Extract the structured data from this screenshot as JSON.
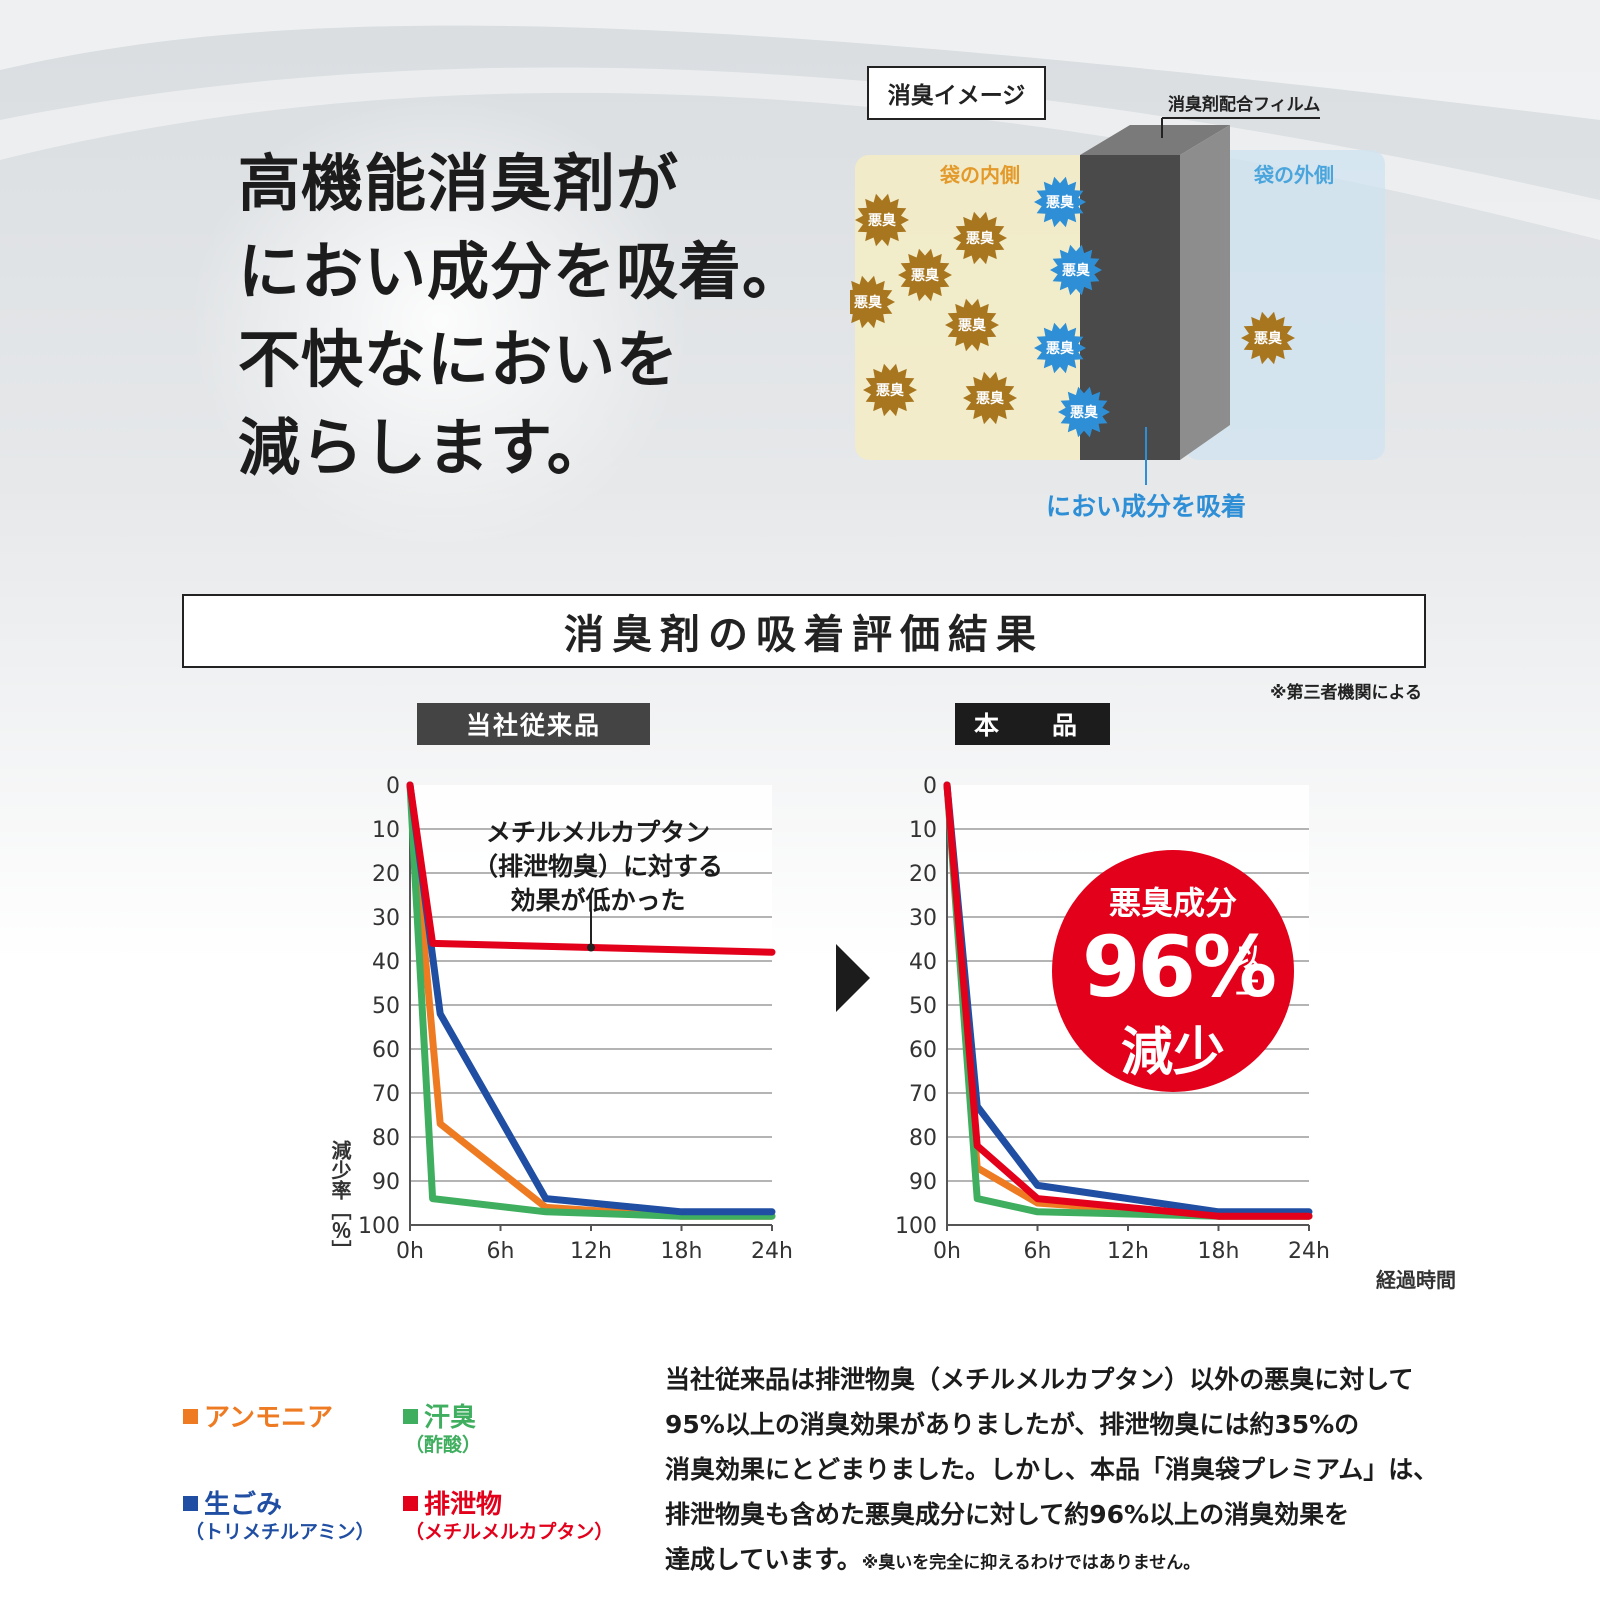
{
  "headline": {
    "lines": [
      "高機能消臭剤が",
      "におい成分を吸着。",
      "不快なにおいを",
      "減らします。"
    ]
  },
  "diagram": {
    "title": "消臭イメージ",
    "film_label": "消臭剤配合フィルム",
    "inside_label": "袋の内側",
    "outside_label": "袋の外側",
    "odor_label": "悪臭",
    "absorb_label": "におい成分を吸着",
    "colors": {
      "inside": "#f3ecc6",
      "outside": "#cfe3f0",
      "film": "#4a4a4a",
      "odor": "#a8761e",
      "absorbed": "#2f8fd6"
    }
  },
  "section_title": "消臭剤の吸着評価結果",
  "source_note": "※第三者機関による",
  "panels": {
    "old_label": "当社従来品",
    "new_label": "本　品"
  },
  "axis": {
    "y_label": "減少率［％］",
    "x_label": "経過時間",
    "y_ticks": [
      "0",
      "10",
      "20",
      "30",
      "40",
      "50",
      "60",
      "70",
      "80",
      "90",
      "100"
    ],
    "x_ticks": [
      "0h",
      "6h",
      "12h",
      "18h",
      "24h"
    ]
  },
  "annotation": {
    "lines": [
      "メチルメルカプタン",
      "（排泄物臭）に対する",
      "効果が低かった"
    ]
  },
  "badge": {
    "line1": "悪臭成分",
    "value": "96%",
    "suffix": "以上",
    "line3": "減少"
  },
  "legend": [
    {
      "name": "アンモニア",
      "sub": "",
      "color": "#ee7a22"
    },
    {
      "name": "汗臭",
      "sub": "（酢酸）",
      "color": "#3fae5f"
    },
    {
      "name": "生ごみ",
      "sub": "（トリメチルアミン）",
      "color": "#1f4ea3"
    },
    {
      "name": "排泄物",
      "sub": "（メチルメルカプタン）",
      "color": "#e3001b"
    }
  ],
  "description": {
    "lines": [
      "当社従来品は排泄物臭（メチルメルカプタン）以外の悪臭に対して",
      "95%以上の消臭効果がありましたが、排泄物臭には約35%の",
      "消臭効果にとどまりました。しかし、本品「消臭袋プレミアム」は、",
      "排泄物臭も含めた悪臭成分に対して約96%以上の消臭効果を",
      "達成しています。"
    ],
    "footnote": "※臭いを完全に抑えるわけではありません。"
  },
  "chart_data": [
    {
      "type": "line",
      "title": "当社従来品",
      "xlabel": "経過時間",
      "ylabel": "減少率［％］",
      "xlim": [
        0,
        24
      ],
      "ylim": [
        0,
        100
      ],
      "y_inverted": true,
      "grid": true,
      "series": [
        {
          "name": "アンモニア",
          "color": "#ee7a22",
          "x": [
            0,
            2,
            9,
            18,
            24
          ],
          "y": [
            0,
            77,
            96,
            98,
            98
          ]
        },
        {
          "name": "汗臭",
          "color": "#3fae5f",
          "x": [
            0,
            1.5,
            9,
            18,
            24
          ],
          "y": [
            0,
            94,
            97,
            98,
            98
          ]
        },
        {
          "name": "生ごみ",
          "color": "#1f4ea3",
          "x": [
            0,
            2,
            9,
            18,
            24
          ],
          "y": [
            0,
            52,
            94,
            97,
            97
          ]
        },
        {
          "name": "排泄物",
          "color": "#e3001b",
          "x": [
            0,
            1.5,
            24
          ],
          "y": [
            0,
            36,
            38
          ]
        }
      ]
    },
    {
      "type": "line",
      "title": "本　品",
      "xlabel": "経過時間",
      "ylabel": "減少率［％］",
      "xlim": [
        0,
        24
      ],
      "ylim": [
        0,
        100
      ],
      "y_inverted": true,
      "grid": true,
      "series": [
        {
          "name": "アンモニア",
          "color": "#ee7a22",
          "x": [
            0,
            2,
            6,
            18,
            24
          ],
          "y": [
            0,
            87,
            95,
            98,
            98
          ]
        },
        {
          "name": "汗臭",
          "color": "#3fae5f",
          "x": [
            0,
            2,
            6,
            18,
            24
          ],
          "y": [
            0,
            94,
            97,
            98,
            98
          ]
        },
        {
          "name": "生ごみ",
          "color": "#1f4ea3",
          "x": [
            0,
            2,
            6,
            18,
            24
          ],
          "y": [
            0,
            73,
            91,
            97,
            97
          ]
        },
        {
          "name": "排泄物",
          "color": "#e3001b",
          "x": [
            0,
            2,
            6,
            18,
            24
          ],
          "y": [
            0,
            82,
            94,
            98,
            98
          ]
        }
      ]
    }
  ]
}
